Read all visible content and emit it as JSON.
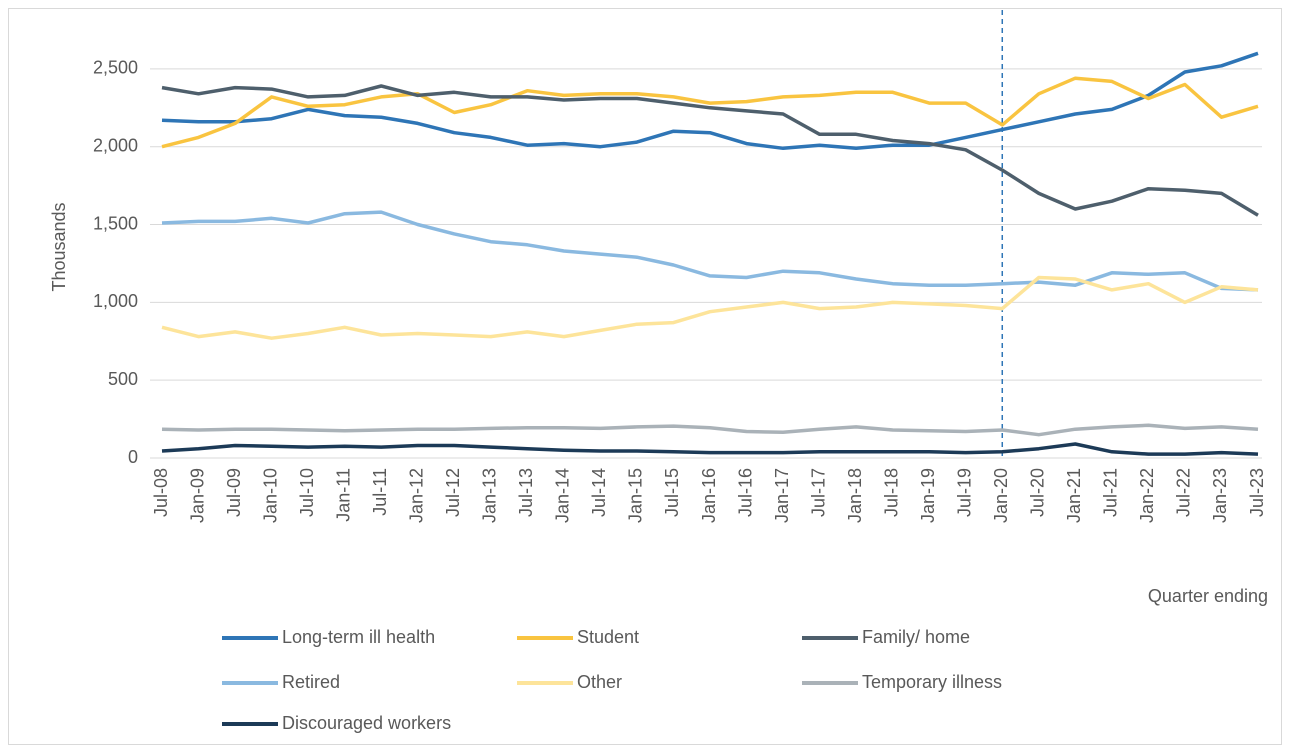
{
  "chart_data": {
    "type": "line",
    "y_axis_label": "Thousands",
    "x_axis_label": "Quarter ending",
    "categories": [
      "Jul-08",
      "Jan-09",
      "Jul-09",
      "Jan-10",
      "Jul-10",
      "Jan-11",
      "Jul-11",
      "Jan-12",
      "Jul-12",
      "Jan-13",
      "Jul-13",
      "Jan-14",
      "Jul-14",
      "Jan-15",
      "Jul-15",
      "Jan-16",
      "Jul-16",
      "Jan-17",
      "Jul-17",
      "Jan-18",
      "Jul-18",
      "Jan-19",
      "Jul-19",
      "Jan-20",
      "Jul-20",
      "Jan-21",
      "Jul-21",
      "Jan-22",
      "Jul-22",
      "Jan-23",
      "Jul-23"
    ],
    "series": [
      {
        "name": "Long-term ill health",
        "color": "#2e75b6",
        "values": [
          2170,
          2160,
          2160,
          2180,
          2240,
          2200,
          2190,
          2150,
          2090,
          2060,
          2010,
          2020,
          2000,
          2030,
          2100,
          2090,
          2020,
          1990,
          2010,
          1990,
          2010,
          2010,
          2060,
          2110,
          2160,
          2210,
          2240,
          2330,
          2480,
          2520,
          2600
        ]
      },
      {
        "name": "Student",
        "color": "#f9c440",
        "values": [
          2000,
          2060,
          2150,
          2320,
          2260,
          2270,
          2320,
          2340,
          2220,
          2270,
          2360,
          2330,
          2340,
          2340,
          2320,
          2280,
          2290,
          2320,
          2330,
          2350,
          2350,
          2280,
          2280,
          2140,
          2340,
          2440,
          2420,
          2310,
          2400,
          2190,
          2260
        ]
      },
      {
        "name": "Family/ home",
        "color": "#4e5f6c",
        "values": [
          2380,
          2340,
          2380,
          2370,
          2320,
          2330,
          2390,
          2330,
          2350,
          2320,
          2320,
          2300,
          2310,
          2310,
          2280,
          2250,
          2230,
          2210,
          2080,
          2080,
          2040,
          2020,
          1980,
          1850,
          1700,
          1600,
          1650,
          1730,
          1720,
          1700,
          1560
        ]
      },
      {
        "name": "Retired",
        "color": "#8ab9e0",
        "values": [
          1510,
          1520,
          1520,
          1540,
          1510,
          1570,
          1580,
          1500,
          1440,
          1390,
          1370,
          1330,
          1310,
          1290,
          1240,
          1170,
          1160,
          1200,
          1190,
          1150,
          1120,
          1110,
          1110,
          1120,
          1130,
          1110,
          1190,
          1180,
          1190,
          1090,
          1080
        ]
      },
      {
        "name": "Other",
        "color": "#fde49a",
        "values": [
          840,
          780,
          810,
          770,
          800,
          840,
          790,
          800,
          790,
          780,
          810,
          780,
          820,
          860,
          870,
          940,
          970,
          1000,
          960,
          970,
          1000,
          990,
          980,
          960,
          1160,
          1150,
          1080,
          1120,
          1000,
          1100,
          1080
        ]
      },
      {
        "name": "Temporary illness",
        "color": "#aab2b8",
        "values": [
          185,
          180,
          185,
          185,
          180,
          175,
          180,
          185,
          185,
          190,
          195,
          195,
          190,
          200,
          205,
          195,
          170,
          165,
          185,
          200,
          180,
          175,
          170,
          180,
          150,
          185,
          200,
          210,
          190,
          200,
          185
        ]
      },
      {
        "name": "Discouraged workers",
        "color": "#1c3a57",
        "values": [
          45,
          60,
          80,
          75,
          70,
          75,
          70,
          80,
          80,
          70,
          60,
          50,
          45,
          45,
          40,
          35,
          35,
          35,
          40,
          40,
          40,
          40,
          35,
          40,
          60,
          90,
          40,
          25,
          25,
          35,
          25
        ]
      }
    ],
    "ylim": [
      0,
      2750
    ],
    "yticks": [
      0,
      500,
      {
        "value": 1000,
        "label": "1,000"
      },
      {
        "value": 1500,
        "label": "1,500"
      },
      {
        "value": 2000,
        "label": "2,000"
      },
      {
        "value": 2500,
        "label": "2,500"
      }
    ],
    "grid": true,
    "vline": "Jan-20",
    "legend": "bottom"
  }
}
